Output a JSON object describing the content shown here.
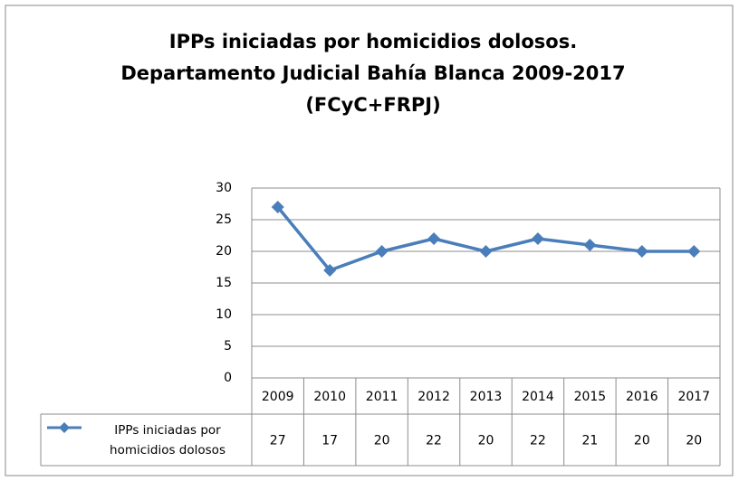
{
  "chart_data": {
    "type": "line",
    "title": [
      "IPPs iniciadas por homicidios dolosos.",
      "Departamento Judicial Bahía Blanca 2009-2017",
      "(FCyC+FRPJ)"
    ],
    "categories": [
      "2009",
      "2010",
      "2011",
      "2012",
      "2013",
      "2014",
      "2015",
      "2016",
      "2017"
    ],
    "series": [
      {
        "name": "IPPs iniciadas por homicidios dolosos",
        "color": "#4a7ebb",
        "values": [
          27,
          17,
          20,
          22,
          20,
          22,
          21,
          20,
          20
        ]
      }
    ],
    "ylim": [
      0,
      30
    ],
    "yticks": [
      0,
      5,
      10,
      15,
      20,
      25,
      30
    ],
    "grid": true
  }
}
